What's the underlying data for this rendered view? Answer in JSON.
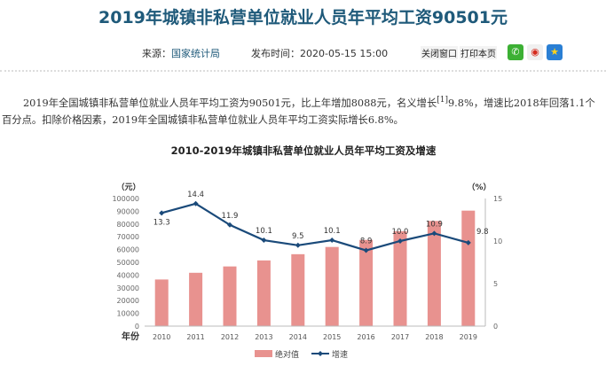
{
  "header": {
    "title": "2019年城镇非私营单位就业人员年平均工资90501元",
    "source_label": "来源：",
    "source_value": "国家统计局",
    "publish_label": "发布时间：",
    "publish_time": "2020-05-15  15:00",
    "close_button": "关闭窗口",
    "print_button": "打印本页",
    "share_icons": [
      "wechat-icon",
      "weibo-icon",
      "qzone-icon"
    ]
  },
  "article": {
    "text_before_sup": "2019年全国城镇非私营单位就业人员年平均工资为90501元，比上年增加8088元，名义增长",
    "sup": "[1]",
    "text_after_sup": "9.8%，增速比2018年回落1.1个百分点。扣除价格因素，2019年全国城镇非私营单位就业人员年平均工资实际增长6.8%。"
  },
  "chart_data": {
    "type": "bar+line",
    "title": "2010-2019年城镇非私营单位就业人员年平均工资及增速",
    "xlabel": "年份",
    "ylabel_left": "（元）",
    "ylabel_right": "（%）",
    "ylim_left": [
      0,
      100000
    ],
    "yticks_left": [
      "0",
      "10000",
      "20000",
      "30000",
      "40000",
      "50000",
      "60000",
      "70000",
      "80000",
      "90000",
      "100000"
    ],
    "ylim_right": [
      0,
      15
    ],
    "yticks_right": [
      "0",
      "5",
      "10",
      "15"
    ],
    "categories": [
      "2010",
      "2011",
      "2012",
      "2013",
      "2014",
      "2015",
      "2016",
      "2017",
      "2018",
      "2019"
    ],
    "series": [
      {
        "name": "绝对值",
        "type": "bar",
        "color": "#e8928f",
        "values": [
          36539,
          41799,
          46769,
          51483,
          56360,
          62029,
          67569,
          74318,
          82413,
          90501
        ]
      },
      {
        "name": "增速",
        "type": "line",
        "color": "#1a4a7a",
        "values": [
          13.3,
          14.4,
          11.9,
          10.1,
          9.5,
          10.1,
          8.9,
          10.0,
          10.9,
          9.8
        ],
        "labels": [
          "13.3",
          "14.4",
          "11.9",
          "10.1",
          "9.5",
          "10.1",
          "8.9",
          "10.0",
          "10.9",
          "9.8"
        ]
      }
    ],
    "legend_position": "bottom",
    "grid": false
  }
}
